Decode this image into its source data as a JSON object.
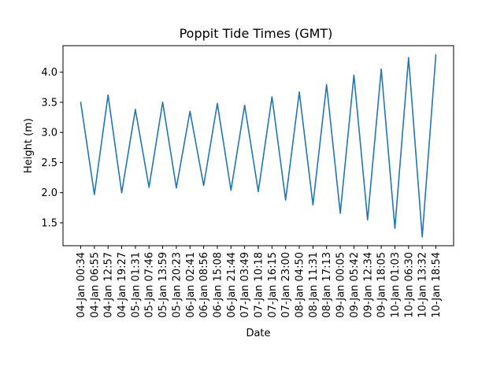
{
  "chart_data": {
    "type": "line",
    "title": "Poppit Tide Times (GMT)",
    "xlabel": "Date",
    "ylabel": "Height (m)",
    "categories": [
      "04-Jan 00:34",
      "04-Jan 06:55",
      "04-Jan 12:57",
      "04-Jan 19:27",
      "05-Jan 01:31",
      "05-Jan 07:46",
      "05-Jan 13:59",
      "05-Jan 20:23",
      "06-Jan 02:41",
      "06-Jan 08:56",
      "06-Jan 15:08",
      "06-Jan 21:44",
      "07-Jan 03:49",
      "07-Jan 10:18",
      "07-Jan 16:15",
      "07-Jan 23:00",
      "08-Jan 04:50",
      "08-Jan 11:31",
      "08-Jan 17:13",
      "09-Jan 00:05",
      "09-Jan 05:42",
      "09-Jan 12:34",
      "09-Jan 18:05",
      "10-Jan 01:03",
      "10-Jan 06:30",
      "10-Jan 13:32",
      "10-Jan 18:54"
    ],
    "series": [
      {
        "values": [
          3.5,
          1.97,
          3.62,
          2.0,
          3.38,
          2.09,
          3.5,
          2.08,
          3.35,
          2.12,
          3.48,
          2.04,
          3.45,
          2.02,
          3.59,
          1.88,
          3.67,
          1.8,
          3.79,
          1.66,
          3.95,
          1.55,
          4.05,
          1.41,
          4.24,
          1.27,
          4.29
        ],
        "color": "#1f77b4"
      }
    ],
    "ylim": [
      1.12,
      4.44
    ],
    "yticks": [
      "1.5",
      "2.0",
      "2.5",
      "3.0",
      "3.5",
      "4.0"
    ],
    "grid": false,
    "legend": "none"
  }
}
